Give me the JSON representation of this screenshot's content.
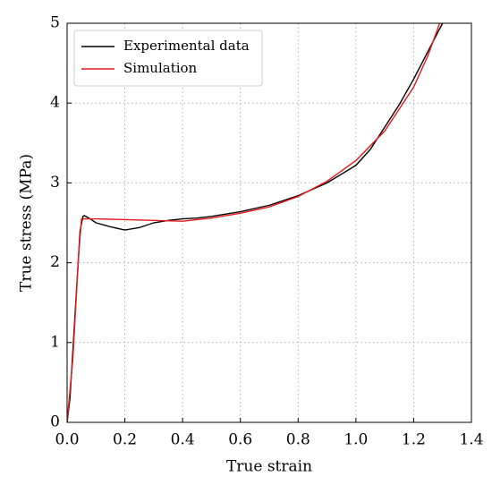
{
  "chart_data": {
    "type": "line",
    "x_label": "True strain",
    "y_label": "True stress (MPa)",
    "series": [
      {
        "name": "Experimental data",
        "color": "#000000",
        "x": [
          0,
          0.01,
          0.03,
          0.045,
          0.055,
          0.06,
          0.08,
          0.1,
          0.15,
          0.2,
          0.25,
          0.3,
          0.35,
          0.4,
          0.45,
          0.5,
          0.6,
          0.7,
          0.8,
          0.9,
          1.0,
          1.05,
          1.1,
          1.15,
          1.2,
          1.25,
          1.3
        ],
        "values": [
          0,
          0.3,
          1.5,
          2.4,
          2.58,
          2.59,
          2.55,
          2.5,
          2.45,
          2.41,
          2.44,
          2.5,
          2.53,
          2.55,
          2.56,
          2.58,
          2.64,
          2.72,
          2.84,
          3.0,
          3.22,
          3.42,
          3.7,
          3.98,
          4.3,
          4.65,
          5.0
        ]
      },
      {
        "name": "Simulation",
        "color": "#e41a1c",
        "x": [
          0,
          0.02,
          0.04,
          0.05,
          0.1,
          0.2,
          0.3,
          0.4,
          0.5,
          0.6,
          0.7,
          0.8,
          0.9,
          1.0,
          1.1,
          1.2,
          1.25,
          1.29
        ],
        "values": [
          0,
          0.8,
          2.1,
          2.55,
          2.55,
          2.54,
          2.53,
          2.52,
          2.56,
          2.62,
          2.7,
          2.83,
          3.02,
          3.28,
          3.65,
          4.2,
          4.6,
          5.0
        ]
      }
    ],
    "xlim": [
      0,
      1.4
    ],
    "ylim": [
      0,
      5
    ],
    "xticks": [
      {
        "value": 0,
        "label": "0.0"
      },
      0.2,
      0.4,
      0.6,
      0.8,
      {
        "value": 1,
        "label": "1.0"
      },
      1.2,
      1.4
    ],
    "yticks": [
      0,
      1,
      2,
      3,
      4,
      5
    ],
    "grid": true,
    "legend": "upper left"
  }
}
